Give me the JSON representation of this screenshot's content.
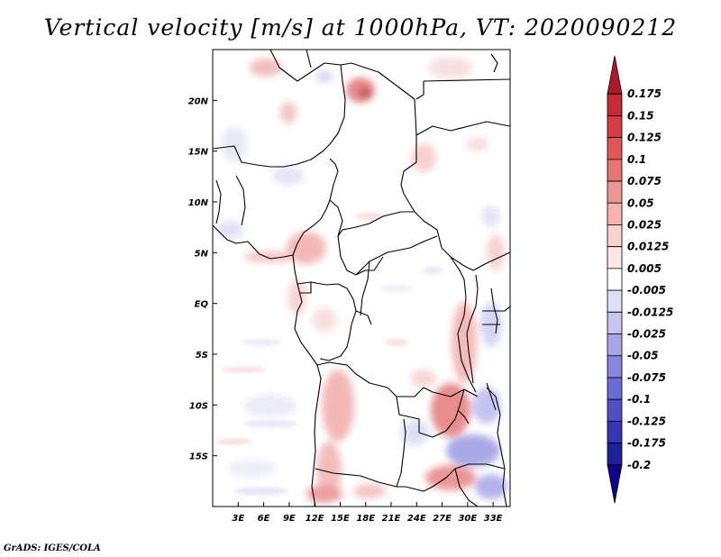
{
  "title": "Vertical velocity [m/s] at 1000hPa, VT: 2020090212",
  "credit": "GrADS: IGES/COLA",
  "map": {
    "lon_range": [
      0,
      35
    ],
    "lat_range": [
      -20,
      25
    ],
    "lon_ticks": [
      {
        "value": 3,
        "label": "3E"
      },
      {
        "value": 6,
        "label": "6E"
      },
      {
        "value": 9,
        "label": "9E"
      },
      {
        "value": 12,
        "label": "12E"
      },
      {
        "value": 15,
        "label": "15E"
      },
      {
        "value": 18,
        "label": "18E"
      },
      {
        "value": 21,
        "label": "21E"
      },
      {
        "value": 24,
        "label": "24E"
      },
      {
        "value": 27,
        "label": "27E"
      },
      {
        "value": 30,
        "label": "30E"
      },
      {
        "value": 33,
        "label": "33E"
      }
    ],
    "lat_ticks": [
      {
        "value": 20,
        "label": "20N"
      },
      {
        "value": 15,
        "label": "15N"
      },
      {
        "value": 10,
        "label": "10N"
      },
      {
        "value": 5,
        "label": "5N"
      },
      {
        "value": 0,
        "label": "EQ"
      },
      {
        "value": -5,
        "label": "5S"
      },
      {
        "value": -10,
        "label": "10S"
      },
      {
        "value": -15,
        "label": "15S"
      }
    ]
  },
  "colorbar": {
    "levels": [
      "0.175",
      "0.15",
      "0.125",
      "0.1",
      "0.075",
      "0.05",
      "0.025",
      "0.0125",
      "0.005",
      "-0.005",
      "-0.0125",
      "-0.025",
      "-0.05",
      "-0.075",
      "-0.1",
      "-0.125",
      "-0.175",
      "-0.2"
    ],
    "colors": [
      "#b2182b",
      "#c62a37",
      "#d73b44",
      "#e15758",
      "#e87470",
      "#ef9591",
      "#f5b4b0",
      "#fad2cf",
      "#fde8e6",
      "#ffffff",
      "#dedff7",
      "#c6c6f2",
      "#a8a6ea",
      "#8a87e0",
      "#6c6bd4",
      "#5050c4",
      "#3636b0",
      "#20209c",
      "#100090"
    ]
  }
}
